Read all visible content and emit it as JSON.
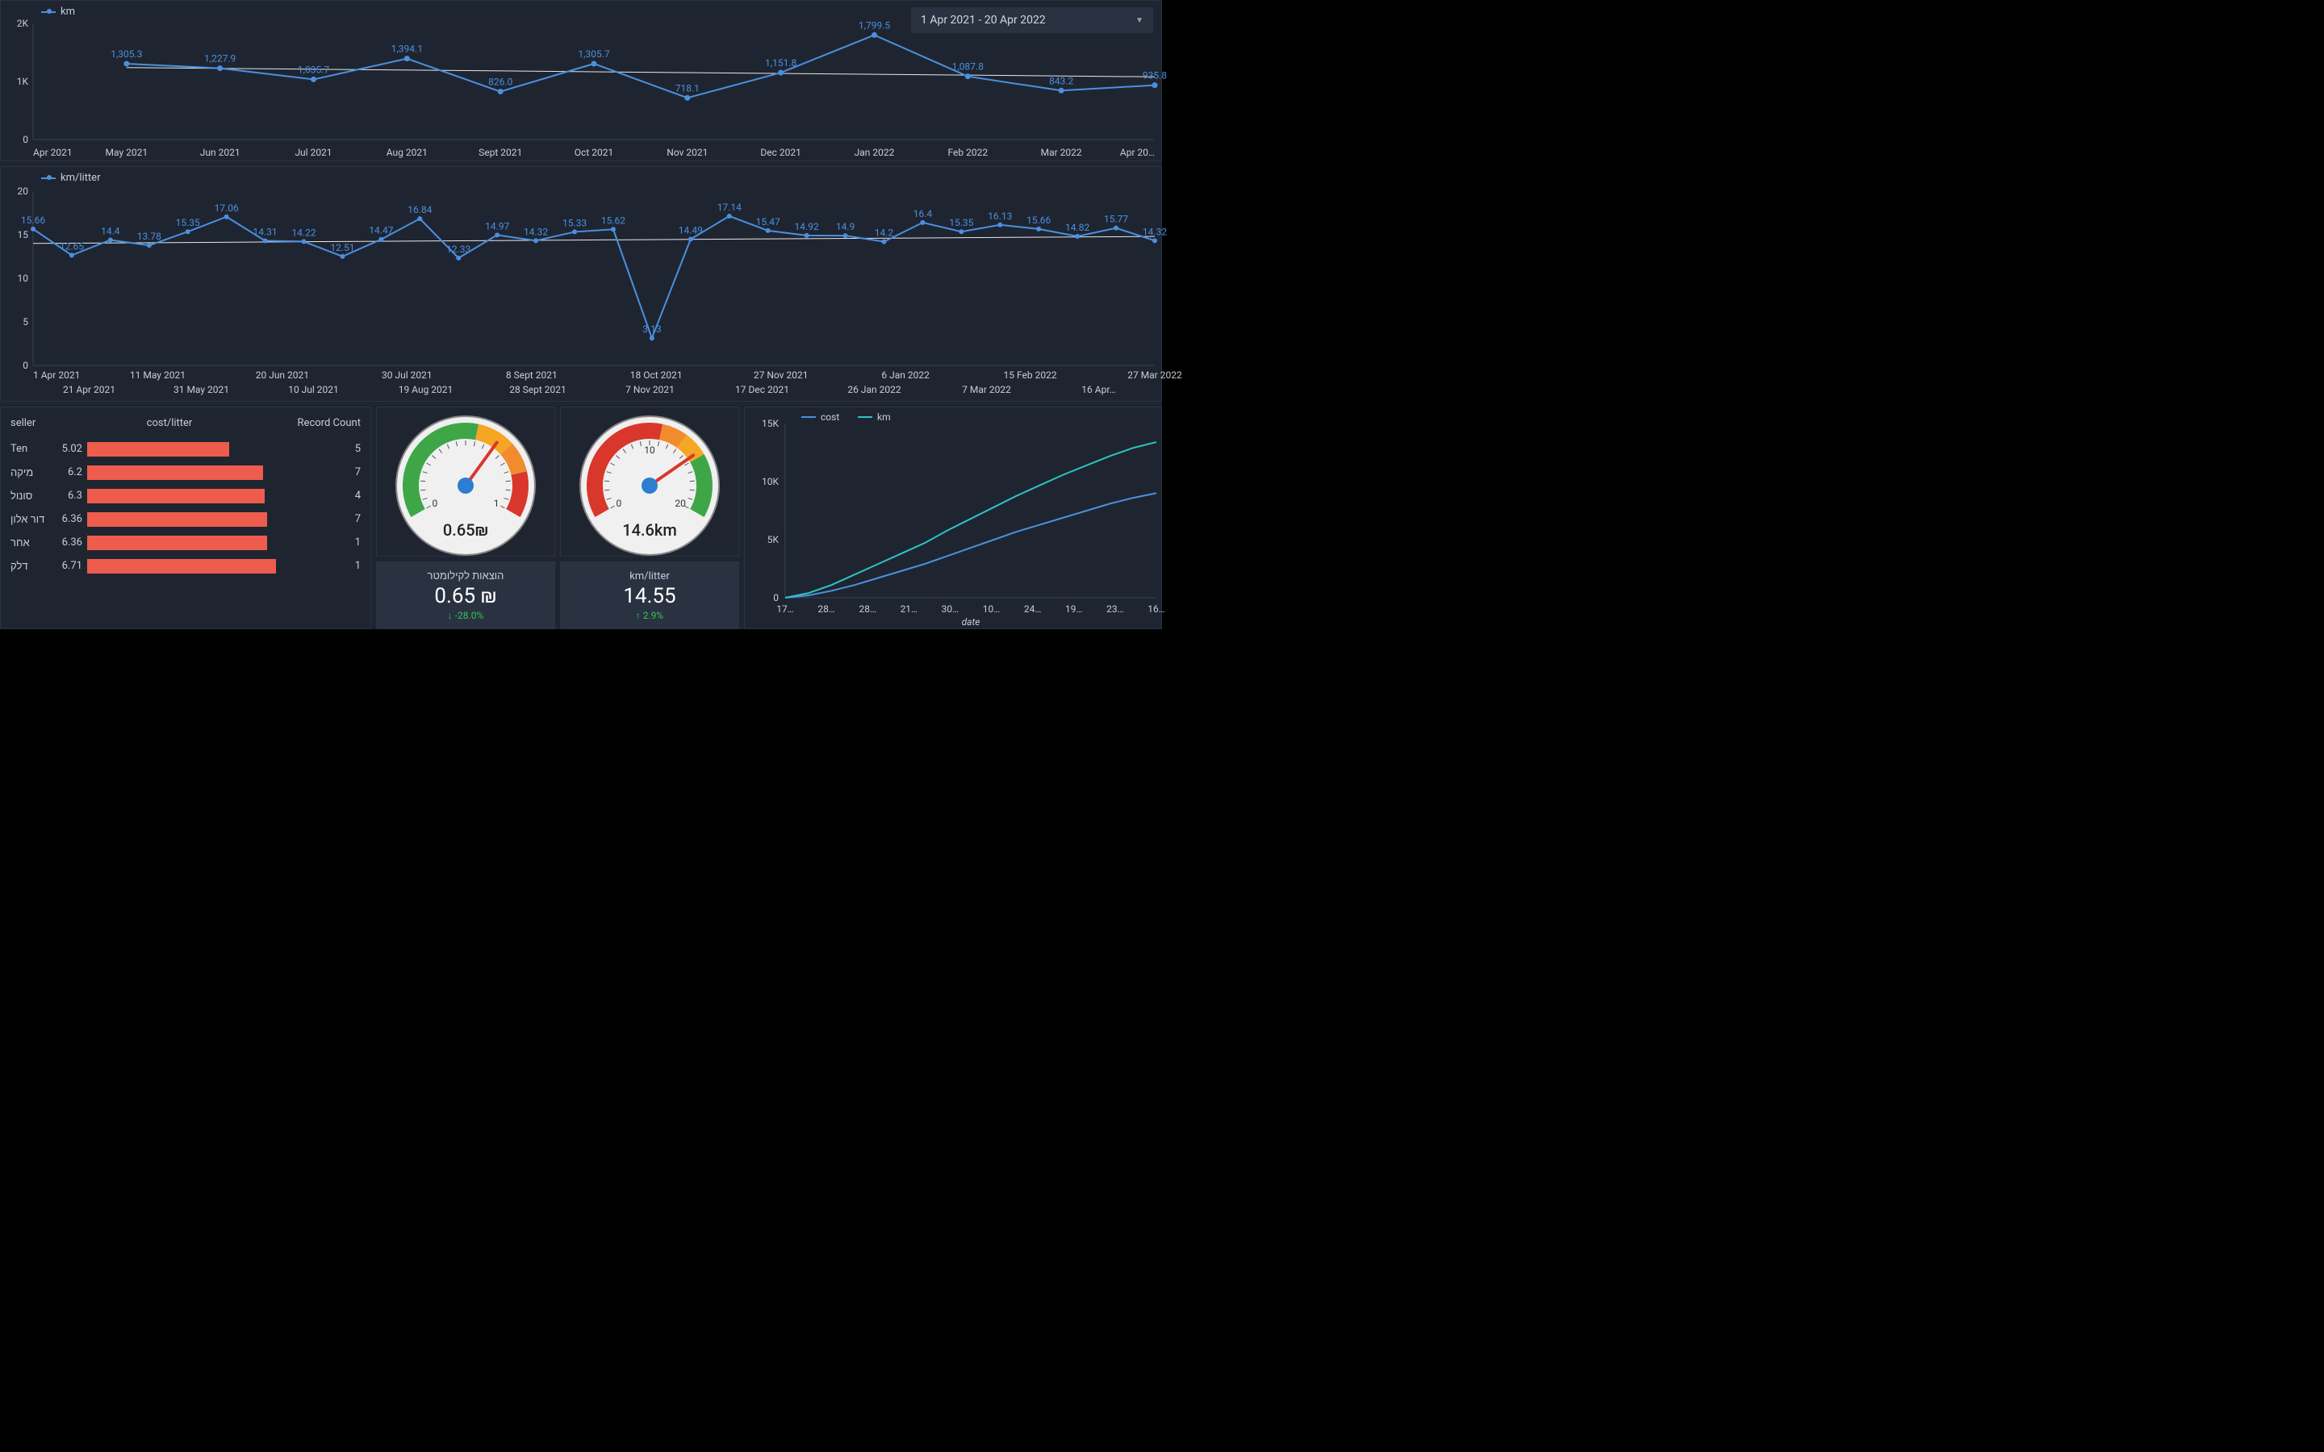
{
  "date_range": "1 Apr 2021 - 20 Apr 2022",
  "colors": {
    "bg": "#1f2530",
    "panel_border": "#2a3140",
    "text": "#c7cdd6",
    "series_blue": "#4a90e2",
    "series_cyan": "#2bc4c4",
    "bar_red": "#ed5c4d",
    "grid": "#3a4150",
    "trend_line": "#e8e8e8",
    "gauge_green": "#3fa648",
    "gauge_yellow": "#f5a623",
    "gauge_orange": "#f08c2e",
    "gauge_red": "#d9372c",
    "needle": "#d9372c",
    "needle_hub": "#2d7dd2",
    "gauge_face": "#f0f0f0"
  },
  "chart_km": {
    "type": "line",
    "legend": "km",
    "ylim": [
      0,
      2000
    ],
    "yticks": [
      0,
      1000,
      2000
    ],
    "ytick_labels": [
      "0",
      "1K",
      "2K"
    ],
    "x_labels": [
      "Apr 2021",
      "May 2021",
      "Jun 2021",
      "Jul 2021",
      "Aug 2021",
      "Sept 2021",
      "Oct 2021",
      "Nov 2021",
      "Dec 2021",
      "Jan 2022",
      "Feb 2022",
      "Mar 2022",
      "Apr 20…"
    ],
    "values": [
      null,
      1305.3,
      1227.9,
      1035.7,
      1394.1,
      826.0,
      1305.7,
      718.1,
      1151.8,
      1799.5,
      1087.8,
      843.2,
      935.8
    ],
    "value_labels": [
      "",
      "1,305.3",
      "1,227.9",
      "1,035.7",
      "1,394.1",
      "826.0",
      "1,305.7",
      "718.1",
      "1,151.8",
      "1,799.5",
      "1,087.8",
      "843.2",
      "935.8"
    ],
    "trend": [
      1240,
      1080
    ]
  },
  "chart_kml": {
    "type": "line",
    "legend": "km/litter",
    "ylim": [
      0,
      20
    ],
    "yticks": [
      0,
      5,
      10,
      15,
      20
    ],
    "x_labels_top": [
      "1 Apr 2021",
      "11 May 2021",
      "20 Jun 2021",
      "30 Jul 2021",
      "8 Sept 2021",
      "18 Oct 2021",
      "27 Nov 2021",
      "6 Jan 2022",
      "15 Feb 2022",
      "27 Mar 2022"
    ],
    "x_labels_bot": [
      "21 Apr 2021",
      "31 May 2021",
      "10 Jul 2021",
      "19 Aug 2021",
      "28 Sept 2021",
      "7 Nov 2021",
      "17 Dec 2021",
      "26 Jan 2022",
      "7 Mar 2022",
      "16 Apr…"
    ],
    "values": [
      15.66,
      12.65,
      14.4,
      13.78,
      15.35,
      17.06,
      14.31,
      14.22,
      12.51,
      14.47,
      16.84,
      12.33,
      14.97,
      14.32,
      15.33,
      15.62,
      3.13,
      14.49,
      17.14,
      15.47,
      14.92,
      14.9,
      14.2,
      16.4,
      15.35,
      16.13,
      15.66,
      14.82,
      15.77,
      14.32
    ],
    "trend": [
      14.0,
      14.8
    ]
  },
  "seller_table": {
    "headers": [
      "seller",
      "cost/litter",
      "Record Count"
    ],
    "max_cost": 8.0,
    "rows": [
      {
        "seller": "Ten",
        "cost": 5.02,
        "cost_label": "5.02",
        "count": 5
      },
      {
        "seller": "מיקה",
        "cost": 6.2,
        "cost_label": "6.2",
        "count": 7
      },
      {
        "seller": "סונול",
        "cost": 6.3,
        "cost_label": "6.3",
        "count": 4
      },
      {
        "seller": "דור אלון",
        "cost": 6.36,
        "cost_label": "6.36",
        "count": 7
      },
      {
        "seller": "אחר",
        "cost": 6.36,
        "cost_label": "6.36",
        "count": 1
      },
      {
        "seller": "דלק",
        "cost": 6.71,
        "cost_label": "6.71",
        "count": 1
      }
    ]
  },
  "gauge_cost": {
    "min": 0,
    "max": 1,
    "value": 0.65,
    "display": "0.65₪",
    "ticks": [
      "0",
      "1"
    ],
    "zones": [
      [
        0,
        0.55,
        "#3fa648"
      ],
      [
        0.55,
        0.7,
        "#f5a623"
      ],
      [
        0.7,
        0.82,
        "#f08c2e"
      ],
      [
        0.82,
        1,
        "#d9372c"
      ]
    ]
  },
  "gauge_kml": {
    "min": 0,
    "max": 20,
    "value": 14.6,
    "display": "14.6km",
    "ticks": [
      "0",
      "10",
      "20"
    ],
    "zones": [
      [
        0,
        11,
        "#d9372c"
      ],
      [
        11,
        13,
        "#f08c2e"
      ],
      [
        13,
        15,
        "#f5a623"
      ],
      [
        15,
        20,
        "#3fa648"
      ]
    ]
  },
  "kpi_cost": {
    "title": "הוצאות לקילומטר",
    "value": "0.65 ₪",
    "delta": "-28.0%",
    "delta_dir": "down"
  },
  "kpi_kml": {
    "title": "km/litter",
    "value": "14.55",
    "delta": "2.9%",
    "delta_dir": "up"
  },
  "cum_chart": {
    "type": "line",
    "legend": [
      "cost",
      "km"
    ],
    "colors": [
      "#4a90e2",
      "#2bc4c4"
    ],
    "ylim": [
      0,
      15000
    ],
    "yticks": [
      0,
      5000,
      10000,
      15000
    ],
    "ytick_labels": [
      "0",
      "5K",
      "10K",
      "15K"
    ],
    "x_labels": [
      "17…",
      "28…",
      "28…",
      "21…",
      "30…",
      "10…",
      "24…",
      "19…",
      "23…",
      "16…"
    ],
    "x_axis_title": "date",
    "cost": [
      0,
      200,
      600,
      1100,
      1700,
      2300,
      2900,
      3600,
      4300,
      5000,
      5700,
      6300,
      6900,
      7500,
      8100,
      8600,
      9000
    ],
    "km": [
      0,
      400,
      1100,
      2000,
      2900,
      3800,
      4700,
      5800,
      6800,
      7800,
      8800,
      9700,
      10600,
      11400,
      12200,
      12900,
      13400
    ]
  }
}
